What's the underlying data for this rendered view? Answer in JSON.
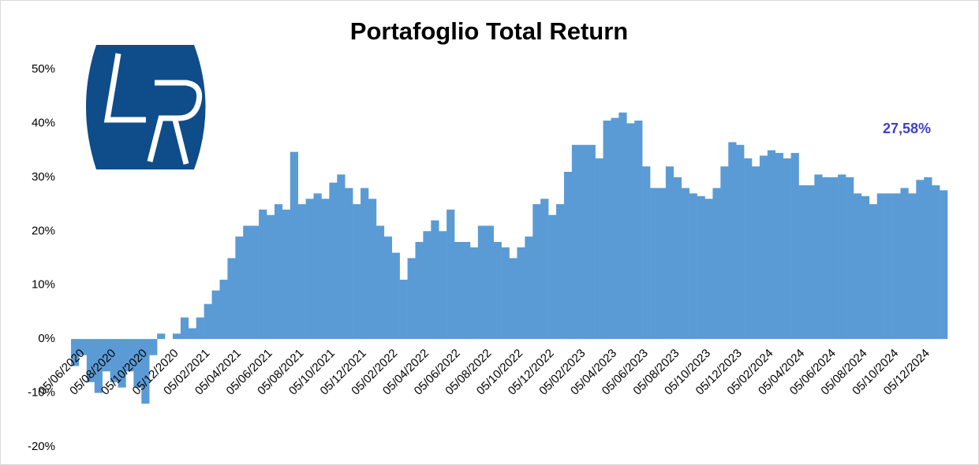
{
  "chart_data": {
    "type": "bar",
    "title": "Portafoglio Total Return",
    "color": "#5b9bd5",
    "categories": [
      "05/06/2020",
      null,
      null,
      null,
      "05/08/2020",
      null,
      null,
      null,
      "05/10/2020",
      null,
      null,
      null,
      "05/12/2020",
      null,
      null,
      null,
      "05/02/2021",
      null,
      null,
      null,
      "05/04/2021",
      null,
      null,
      null,
      "05/06/2021",
      null,
      null,
      null,
      "05/08/2021",
      null,
      null,
      null,
      "05/10/2021",
      null,
      null,
      null,
      "05/12/2021",
      null,
      null,
      null,
      "05/02/2022",
      null,
      null,
      null,
      "05/04/2022",
      null,
      null,
      null,
      "05/06/2022",
      null,
      null,
      null,
      "05/08/2022",
      null,
      null,
      null,
      "05/10/2022",
      null,
      null,
      null,
      "05/12/2022",
      null,
      null,
      null,
      "05/02/2023",
      null,
      null,
      null,
      "05/04/2023",
      null,
      null,
      null,
      "05/06/2023",
      null,
      null,
      null,
      "05/08/2023",
      null,
      null,
      null,
      "05/10/2023",
      null,
      null,
      null,
      "05/12/2023",
      null,
      null,
      null,
      "05/02/2024",
      null,
      null,
      null,
      "05/04/2024",
      null,
      null,
      null,
      "05/06/2024",
      null,
      null,
      null,
      "05/08/2024",
      null,
      null,
      null,
      "05/10/2024",
      null,
      null,
      null,
      "05/12/2024",
      null,
      null,
      null
    ],
    "values": [
      -5,
      -3,
      -8,
      -10,
      -6,
      -8,
      -9,
      -6,
      -9,
      -12,
      -3,
      1,
      0,
      1,
      4,
      2,
      4,
      6.5,
      9,
      11,
      15,
      19,
      21,
      21,
      24,
      23,
      25,
      24,
      34.7,
      25,
      26,
      27,
      26,
      29,
      30.5,
      28,
      25,
      28,
      26,
      21,
      19,
      16,
      11,
      15,
      18,
      20,
      22,
      20,
      24,
      18,
      18,
      17,
      21,
      21,
      18,
      17,
      15,
      17,
      19,
      25,
      26,
      23,
      25,
      31,
      36,
      36,
      36,
      33.5,
      40.5,
      41,
      42,
      40,
      40.5,
      32,
      28,
      28,
      32,
      30,
      28,
      27,
      26.5,
      26,
      28,
      32,
      36.5,
      36,
      33.5,
      32,
      34,
      35,
      34.5,
      33.5,
      34.5,
      28.5,
      28.5,
      30.5,
      30,
      30,
      30.5,
      30,
      27,
      26.5,
      25,
      27,
      27,
      27,
      28,
      27,
      29.5,
      30,
      28.5,
      27.58
    ],
    "value_labels": [
      null,
      null,
      null,
      null,
      null,
      null,
      null,
      null,
      null,
      null,
      null,
      null,
      null,
      null,
      null,
      null,
      null,
      null,
      null,
      null,
      null,
      null,
      null,
      null,
      null,
      null,
      null,
      null,
      null,
      null,
      null,
      null,
      null,
      null,
      null,
      null,
      null,
      null,
      null,
      null,
      null,
      null,
      null,
      null,
      null,
      null,
      null,
      null,
      null,
      null,
      null,
      null,
      null,
      null,
      null,
      null,
      null,
      null,
      null,
      null,
      null,
      null,
      null,
      null,
      null,
      null,
      null,
      null,
      null,
      null,
      null,
      null,
      null,
      null,
      null,
      null,
      null,
      null,
      null,
      null,
      null,
      null,
      null,
      null,
      null,
      null,
      null,
      null,
      null,
      null,
      null,
      null,
      null,
      null,
      null,
      null,
      null,
      null,
      null,
      null,
      null,
      null,
      null,
      null,
      null,
      null,
      null,
      null,
      null,
      null,
      null,
      "27,58%"
    ],
    "ylim": [
      -20,
      50
    ],
    "yticks": [
      {
        "value": -20,
        "label": "-20%"
      },
      {
        "value": -10,
        "label": "-10%"
      },
      {
        "value": 0,
        "label": "0%"
      },
      {
        "value": 10,
        "label": "10%"
      },
      {
        "value": 20,
        "label": "20%"
      },
      {
        "value": 30,
        "label": "30%"
      },
      {
        "value": 40,
        "label": "40%"
      },
      {
        "value": 50,
        "label": "50%"
      }
    ],
    "grid": false
  }
}
